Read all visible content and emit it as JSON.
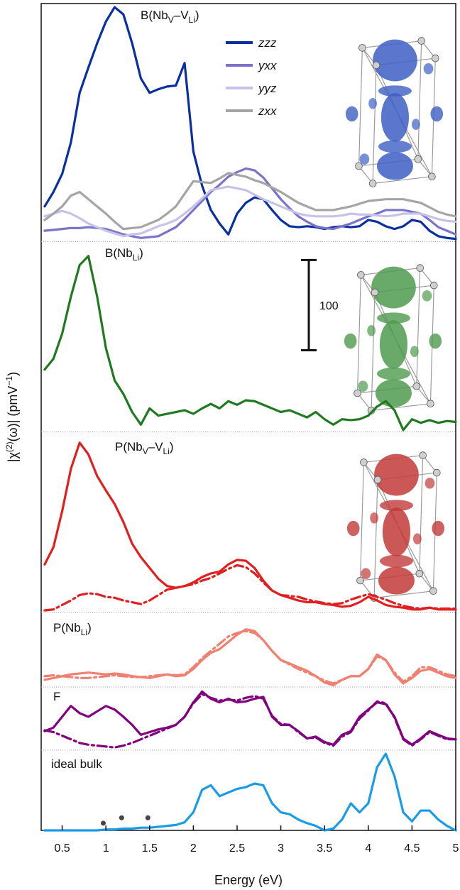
{
  "chart_data": {
    "type": "line",
    "x_label": "Energy (eV)",
    "y_label": [
      {
        "text": "|χ"
      },
      {
        "text": "(2)",
        "sup": true
      },
      {
        "text": "(ω)| (pmV"
      },
      {
        "text": "−1",
        "sup": true
      },
      {
        "text": ")"
      }
    ],
    "xlim": [
      0.26,
      5
    ],
    "xticks": [
      0.5,
      1,
      1.5,
      2,
      2.5,
      3,
      3.5,
      4,
      4.5,
      5
    ],
    "x": [
      0.3,
      0.4,
      0.5,
      0.6,
      0.7,
      0.8,
      0.9,
      1.0,
      1.1,
      1.2,
      1.3,
      1.4,
      1.5,
      1.6,
      1.7,
      1.8,
      1.9,
      2.0,
      2.1,
      2.2,
      2.3,
      2.4,
      2.5,
      2.6,
      2.7,
      2.8,
      2.9,
      3.0,
      3.1,
      3.2,
      3.3,
      3.4,
      3.5,
      3.6,
      3.7,
      3.8,
      3.9,
      4.0,
      4.1,
      4.2,
      4.3,
      4.4,
      4.5,
      4.6,
      4.7,
      4.8,
      4.9,
      5.0
    ],
    "panels": [
      {
        "label": [
          {
            "text": "B(Nb"
          },
          {
            "text": "V",
            "sub": true
          },
          {
            "text": "–V"
          },
          {
            "text": "Li",
            "sub": true
          },
          {
            "text": ")"
          }
        ],
        "ylim": [
          0,
          264
        ],
        "inset_color": "#3d5fc4",
        "series": [
          {
            "name": "zzz",
            "color": "#0a2fa0",
            "values": [
              39,
              55,
              75,
              110,
              165,
              193,
              220,
              244,
              260,
              252,
              220,
              181,
              165,
              169,
              172,
              173,
              198,
              100,
              62,
              35,
              20,
              8,
              31,
              43,
              49,
              47,
              35,
              24,
              17,
              16,
              17,
              16,
              14,
              16,
              17,
              16,
              17,
              24,
              22,
              17,
              14,
              17,
              24,
              22,
              12,
              6,
              4,
              3
            ]
          },
          {
            "name": "yxx",
            "color": "#7a74c9",
            "values": [
              12,
              13,
              14,
              15,
              15,
              16,
              15,
              14,
              11,
              8,
              6,
              4,
              5,
              6,
              11,
              16,
              25,
              35,
              45,
              55,
              63,
              72,
              77,
              81,
              79,
              71,
              59,
              47,
              37,
              28,
              22,
              17,
              15,
              14,
              17,
              20,
              24,
              28,
              31,
              35,
              35,
              35,
              33,
              31,
              24,
              16,
              12,
              8
            ]
          },
          {
            "name": "yyz",
            "color": "#c7c2e9",
            "values": [
              28,
              31,
              34,
              31,
              26,
              20,
              16,
              12,
              9,
              6,
              8,
              9,
              13,
              17,
              20,
              24,
              31,
              39,
              48,
              57,
              59,
              61,
              59,
              57,
              52,
              47,
              43,
              39,
              35,
              31,
              29,
              28,
              28,
              28,
              29,
              31,
              30,
              30,
              29,
              28,
              29,
              31,
              31,
              31,
              28,
              25,
              23,
              22
            ]
          },
          {
            "name": "zxx",
            "color": "#a5a5a5",
            "values": [
              24,
              31,
              39,
              51,
              55,
              47,
              39,
              31,
              22,
              14,
              15,
              16,
              20,
              24,
              31,
              39,
              53,
              67,
              66,
              65,
              70,
              76,
              74,
              72,
              68,
              65,
              60,
              55,
              49,
              43,
              39,
              35,
              35,
              35,
              37,
              39,
              42,
              45,
              46,
              47,
              47,
              47,
              45,
              43,
              38,
              33,
              30,
              28
            ]
          }
        ]
      },
      {
        "label": [
          {
            "text": "B(Nb"
          },
          {
            "text": "Li",
            "sub": true
          },
          {
            "text": ")"
          }
        ],
        "ylim": [
          0,
          211
        ],
        "inset_color": "#4f9a4f",
        "scale_bar": 100,
        "series": [
          {
            "color": "#1f7a1f",
            "values": [
              69,
              81,
              109,
              150,
              185,
              195,
              150,
              93,
              57,
              42,
              22,
              8,
              26,
              18,
              20,
              22,
              24,
              20,
              26,
              31,
              26,
              34,
              30,
              35,
              34,
              30,
              26,
              22,
              24,
              20,
              16,
              22,
              14,
              8,
              14,
              13,
              14,
              18,
              28,
              34,
              24,
              2,
              14,
              10,
              13,
              10,
              12,
              11
            ]
          }
        ]
      },
      {
        "label": [
          {
            "text": "P(Nb"
          },
          {
            "text": "V",
            "sub": true
          },
          {
            "text": "–V"
          },
          {
            "text": "Li",
            "sub": true
          },
          {
            "text": ")"
          }
        ],
        "ylim": [
          0,
          200
        ],
        "inset_color": "#c23a3a",
        "series": [
          {
            "color": "#e02020",
            "values": [
              53,
              72,
              112,
              159,
              188,
              175,
              151,
              135,
              120,
              100,
              76,
              61,
              49,
              37,
              29,
              27,
              29,
              33,
              39,
              43,
              45,
              53,
              58,
              57,
              49,
              35,
              24,
              19,
              16,
              13,
              11,
              11,
              9,
              8,
              6,
              7,
              11,
              17,
              13,
              8,
              6,
              5,
              3,
              3,
              5,
              3,
              3,
              3
            ]
          },
          {
            "color": "#e02020",
            "style": "dashdot",
            "values": [
              2,
              3,
              8,
              13,
              19,
              21,
              20,
              17,
              16,
              13,
              11,
              9,
              13,
              19,
              25,
              27,
              29,
              31,
              35,
              38,
              43,
              48,
              52,
              50,
              43,
              33,
              24,
              19,
              18,
              17,
              14,
              12,
              10,
              9,
              10,
              14,
              17,
              20,
              17,
              14,
              10,
              7,
              5,
              4,
              5,
              4,
              4,
              4
            ]
          }
        ]
      },
      {
        "label": [
          {
            "text": "P(Nb"
          },
          {
            "text": "Li",
            "sub": true
          },
          {
            "text": ")"
          }
        ],
        "ylim": [
          0,
          83
        ],
        "series": [
          {
            "color": "#f08070",
            "values": [
              8,
              10,
              12,
              14,
              15,
              16,
              15,
              14,
              15,
              14,
              12,
              11,
              10,
              12,
              14,
              12,
              13,
              20,
              30,
              38,
              42,
              50,
              58,
              64,
              62,
              52,
              40,
              30,
              26,
              22,
              18,
              12,
              5,
              2,
              8,
              12,
              12,
              20,
              36,
              30,
              14,
              4,
              10,
              18,
              20,
              16,
              12,
              10
            ]
          },
          {
            "color": "#f08070",
            "style": "dashdot",
            "values": [
              12,
              13,
              12,
              11,
              10,
              10,
              11,
              12,
              13,
              12,
              11,
              11,
              12,
              13,
              14,
              13,
              14,
              22,
              32,
              40,
              48,
              56,
              60,
              62,
              60,
              52,
              40,
              30,
              25,
              20,
              16,
              12,
              7,
              4,
              8,
              12,
              12,
              20,
              34,
              30,
              16,
              6,
              12,
              22,
              22,
              18,
              14,
              12
            ]
          }
        ]
      },
      {
        "label": [
          {
            "text": "F"
          }
        ],
        "ylim": [
          0,
          70
        ],
        "series": [
          {
            "color": "#800080",
            "values": [
              21,
              25,
              37,
              49,
              41,
              37,
              43,
              49,
              45,
              37,
              28,
              17,
              20,
              23,
              25,
              28,
              37,
              53,
              65,
              57,
              53,
              57,
              53,
              54,
              57,
              59,
              37,
              28,
              28,
              21,
              13,
              15,
              9,
              6,
              17,
              21,
              37,
              45,
              53,
              51,
              37,
              13,
              6,
              13,
              21,
              17,
              13,
              12
            ]
          },
          {
            "color": "#800080",
            "style": "dashdot",
            "values": [
              22,
              20,
              16,
              12,
              8,
              6,
              5,
              4,
              3,
              5,
              8,
              12,
              16,
              20,
              24,
              28,
              37,
              52,
              62,
              58,
              55,
              56,
              55,
              58,
              60,
              57,
              38,
              29,
              28,
              20,
              13,
              14,
              8,
              5,
              15,
              20,
              35,
              44,
              54,
              52,
              36,
              12,
              5,
              12,
              20,
              16,
              12,
              12
            ]
          }
        ]
      },
      {
        "label": [
          {
            "text": "ideal bulk"
          }
        ],
        "ylim": [
          0,
          89
        ],
        "series": [
          {
            "color": "#1a9be8",
            "values": [
              0,
              0,
              0,
              0,
              0,
              0,
              0,
              1,
              1,
              2,
              2,
              3,
              3,
              4,
              5,
              6,
              9,
              20,
              45,
              50,
              38,
              42,
              46,
              48,
              52,
              50,
              30,
              20,
              18,
              12,
              8,
              5,
              0,
              2,
              12,
              30,
              20,
              30,
              70,
              85,
              60,
              20,
              10,
              22,
              22,
              12,
              5,
              0
            ]
          }
        ],
        "points": {
          "color": "#444444",
          "x": [
            0.97,
            1.18,
            1.48
          ],
          "values": [
            8,
            14,
            14
          ]
        }
      }
    ]
  }
}
